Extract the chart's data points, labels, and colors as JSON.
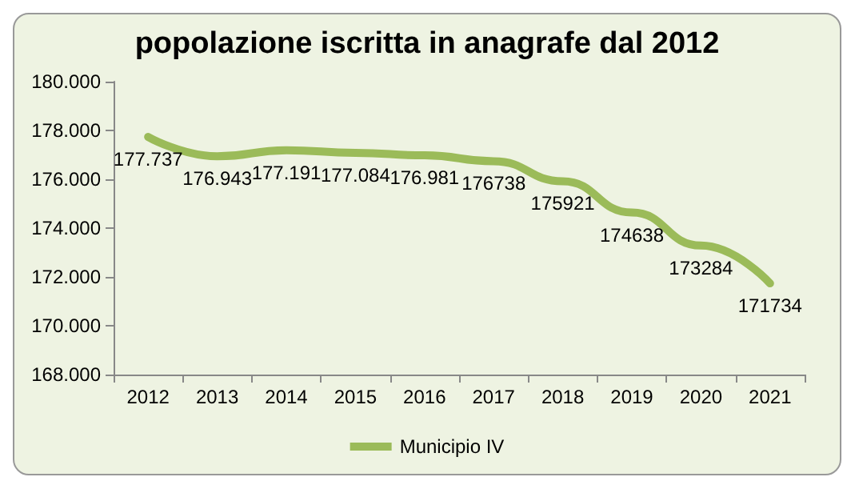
{
  "chart_data": {
    "type": "line",
    "title": "popolazione iscritta in anagrafe dal 2012",
    "categories": [
      "2012",
      "2013",
      "2014",
      "2015",
      "2016",
      "2017",
      "2018",
      "2019",
      "2020",
      "2021"
    ],
    "series": [
      {
        "name": "Municipio IV",
        "color": "#9bbb59",
        "values": [
          177737,
          176943,
          177191,
          177084,
          176981,
          176738,
          175921,
          174638,
          173284,
          171734
        ],
        "value_labels": [
          "177.737",
          "176.943",
          "177.191",
          "177.084",
          "176.981",
          "176738",
          "175921",
          "174638",
          "173284",
          "171734"
        ]
      }
    ],
    "ylim": [
      168000,
      180000
    ],
    "yticks": [
      {
        "value": 168000,
        "label": "168.000"
      },
      {
        "value": 170000,
        "label": "170.000"
      },
      {
        "value": 172000,
        "label": "172.000"
      },
      {
        "value": 174000,
        "label": "174.000"
      },
      {
        "value": 176000,
        "label": "176.000"
      },
      {
        "value": 178000,
        "label": "178.000"
      },
      {
        "value": 180000,
        "label": "180.000"
      }
    ],
    "legend": "bottom",
    "marker": "none",
    "line_style": "solid",
    "grid": false
  }
}
